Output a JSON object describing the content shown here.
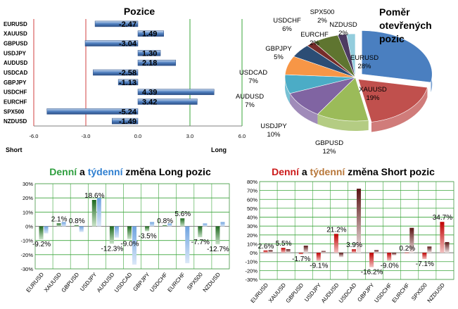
{
  "panels": {
    "positions": {
      "title": "Pozice",
      "label_short": "Short",
      "label_long": "Long"
    },
    "share": {
      "title_lines": [
        "Poměr",
        "otevřených",
        "pozic"
      ]
    },
    "long_change": {
      "title_part1": "Denní",
      "title_part2": " a ",
      "title_part3": "týdenní",
      "title_part4": " změna Long pozic"
    },
    "short_change": {
      "title_part1": "Denní",
      "title_part2": " a ",
      "title_part3": "týdenní",
      "title_part4": " změna Short pozic"
    }
  },
  "colors": {
    "green_title": "#2e9e3e",
    "blue_title": "#2f7fd0",
    "red_title": "#cc1a1a",
    "brown_title": "#b8773a",
    "bar_blue": "#4f7fbf",
    "bar_green": "#2f7a2f",
    "bar_red": "#c00000",
    "bar_darkred": "#6a1a1a",
    "grid_green": "#3aa53a",
    "line_red": "#c04040"
  },
  "chart_data": [
    {
      "type": "bar",
      "orientation": "horizontal",
      "title": "Pozice",
      "categories": [
        "EURUSD",
        "XAUUSD",
        "GBPUSD",
        "USDJPY",
        "AUDUSD",
        "USDCAD",
        "GBPJPY",
        "USDCHF",
        "EURCHF",
        "SPX500",
        "NZDUSD"
      ],
      "values": [
        -2.47,
        1.49,
        -3.04,
        1.3,
        2.18,
        -2.58,
        -1.13,
        4.39,
        3.42,
        -5.24,
        -1.49
      ],
      "data_labels": [
        "-2.47",
        "1.49",
        "-3.04",
        "1.30",
        "2.18",
        "-2.58",
        "-1.13",
        "4.39",
        "3.42",
        "-5.24",
        "-1.49"
      ],
      "xlim": [
        -6,
        6
      ],
      "xticks": [
        "-6.0",
        "-3.0",
        "0.0",
        "3.0",
        "6.0"
      ]
    },
    {
      "type": "pie",
      "title": "Poměr otevřených pozic",
      "slices": [
        {
          "label": "EURUSD",
          "pct": "28%",
          "value": 28,
          "color": "#4a7fc0"
        },
        {
          "label": "XAUUSD",
          "pct": "19%",
          "value": 19,
          "color": "#c0504d"
        },
        {
          "label": "GBPUSD",
          "pct": "12%",
          "value": 12,
          "color": "#9bbb59"
        },
        {
          "label": "USDJPY",
          "pct": "10%",
          "value": 10,
          "color": "#8064a2"
        },
        {
          "label": "AUDUSD",
          "pct": "7%",
          "value": 7,
          "color": "#4bacc6"
        },
        {
          "label": "USDCAD",
          "pct": "7%",
          "value": 7,
          "color": "#f79646"
        },
        {
          "label": "GBPJPY",
          "pct": "5%",
          "value": 5,
          "color": "#2c4d75"
        },
        {
          "label": "EURCHF",
          "pct": "2%",
          "value": 2,
          "color": "#772c2a"
        },
        {
          "label": "USDCHF",
          "pct": "6%",
          "value": 6,
          "color": "#5f7530"
        },
        {
          "label": "SPX500",
          "pct": "2%",
          "value": 2,
          "color": "#4d3b62"
        },
        {
          "label": "NZDUSD",
          "pct": "2%",
          "value": 2,
          "color": "#93cddd"
        }
      ]
    },
    {
      "type": "bar",
      "title": "Denní a týdenní změna Long pozic",
      "categories": [
        "EURUSD",
        "XAUUSD",
        "GBPUSD",
        "USDJPY",
        "AUDUSD",
        "USDCAD",
        "GBPJPY",
        "USDCHF",
        "EURCHF",
        "SPX500",
        "NZDUSD"
      ],
      "series": [
        {
          "values": [
            -9.2,
            2.1,
            0.8,
            18.6,
            -12.3,
            -9.0,
            -3.5,
            0.8,
            5.6,
            -7.7,
            -12.7
          ]
        },
        {
          "values": [
            -5.0,
            3.0,
            -4.0,
            20.0,
            -8.0,
            -27.0,
            3.0,
            2.0,
            -26.0,
            2.0,
            3.0
          ]
        }
      ],
      "data_labels": [
        "-9.2%",
        "2.1%",
        "0.8%",
        "18.6%",
        "-12.3%",
        "-9.0%",
        "-3.5%",
        "0.8%",
        "5.6%",
        "-7.7%",
        "-12.7%"
      ],
      "ylim": [
        -30,
        30
      ],
      "yticks": [
        "30%",
        "20%",
        "10%",
        "0%",
        "-10%",
        "-20%",
        "-30%"
      ]
    },
    {
      "type": "bar",
      "title": "Denní a týdenní změna Short pozic",
      "categories": [
        "EURUSD",
        "XAUUSD",
        "GBPUSD",
        "USDJPY",
        "AUDUSD",
        "USDCAD",
        "GBPJPY",
        "USDCHF",
        "EURCHF",
        "SPX500",
        "NZDUSD"
      ],
      "series": [
        {
          "values": [
            2.6,
            5.5,
            -1.7,
            -9.1,
            21.2,
            3.9,
            -16.2,
            -9.0,
            0.2,
            -7.1,
            34.7
          ]
        },
        {
          "values": [
            3.0,
            4.0,
            8.0,
            2.0,
            -5.0,
            72.0,
            3.0,
            -3.0,
            28.0,
            7.0,
            12.0
          ]
        }
      ],
      "data_labels": [
        "2.6%",
        "5.5%",
        "-1.7%",
        "-9.1%",
        "21.2%",
        "3.9%",
        "-16.2%",
        "-9.0%",
        "0.2%",
        "-7.1%",
        "34.7%"
      ],
      "ylim": [
        -30,
        80
      ],
      "yticks": [
        "80%",
        "70%",
        "60%",
        "50%",
        "40%",
        "30%",
        "20%",
        "10%",
        "0%",
        "-10%",
        "-20%",
        "-30%"
      ]
    }
  ]
}
